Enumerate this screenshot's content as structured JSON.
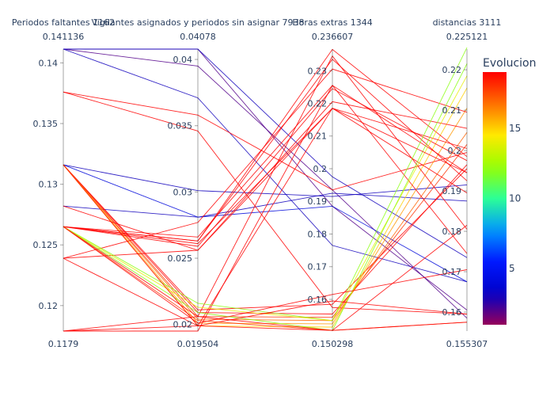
{
  "chart_data": {
    "type": "parallel_coordinates",
    "dimensions": [
      {
        "label": "Periodos faltantes 1162",
        "range": [
          0.1179,
          0.141136
        ],
        "range_labels": [
          "0.1179",
          "0.141136"
        ],
        "ticks": [
          0.12,
          0.125,
          0.13,
          0.135,
          0.14
        ],
        "tick_labels": [
          "0.12",
          "0.125",
          "0.13",
          "0.135",
          "0.14"
        ]
      },
      {
        "label": "Vigilantes asignados y periodos sin asignar 7938",
        "range": [
          0.019504,
          0.04078
        ],
        "range_labels": [
          "0.019504",
          "0.04078"
        ],
        "ticks": [
          0.02,
          0.025,
          0.03,
          0.035,
          0.04
        ],
        "tick_labels": [
          "0.02",
          "0.025",
          "0.03",
          "0.035",
          "0.04"
        ]
      },
      {
        "label": "Horas extras 1344",
        "range": [
          0.150298,
          0.236607
        ],
        "range_labels": [
          "0.150298",
          "0.236607"
        ],
        "ticks": [
          0.16,
          0.17,
          0.18,
          0.19,
          0.2,
          0.21,
          0.22,
          0.23
        ],
        "tick_labels": [
          "0.16",
          "0.17",
          "0.18",
          "0.19",
          "0.2",
          "0.21",
          "0.22",
          "0.23"
        ]
      },
      {
        "label": "distancias 3111",
        "range": [
          0.155307,
          0.225121
        ],
        "range_labels": [
          "0.155307",
          "0.225121"
        ],
        "ticks": [
          0.16,
          0.17,
          0.18,
          0.19,
          0.2,
          0.21,
          0.22
        ],
        "tick_labels": [
          "0.16",
          "0.17",
          "0.18",
          "0.19",
          "0.2",
          "0.21",
          "0.22"
        ]
      }
    ],
    "colorbar": {
      "title": "Evolucion",
      "min": 1,
      "max": 19,
      "ticks": [
        5,
        10,
        15
      ],
      "tick_labels": [
        "5",
        "10",
        "15"
      ],
      "colorscale": "rainbow"
    },
    "lines": [
      {
        "values": [
          0.141136,
          0.04078,
          0.1885,
          0.1605
        ],
        "color_value": 2
      },
      {
        "values": [
          0.141136,
          0.0395,
          0.1935,
          0.1585
        ],
        "color_value": 2
      },
      {
        "values": [
          0.141136,
          0.0371,
          0.1765,
          0.1675
        ],
        "color_value": 3
      },
      {
        "values": [
          0.141136,
          0.04078,
          0.1975,
          0.1735
        ],
        "color_value": 3
      },
      {
        "values": [
          0.1316,
          0.0301,
          0.1915,
          0.1915
        ],
        "color_value": 3
      },
      {
        "values": [
          0.1282,
          0.0281,
          0.1925,
          0.1875
        ],
        "color_value": 3
      },
      {
        "values": [
          0.1316,
          0.0281,
          0.1885,
          0.1675
        ],
        "color_value": 4
      },
      {
        "values": [
          0.1376,
          0.0358,
          0.1935,
          0.1995
        ],
        "color_value": 19
      },
      {
        "values": [
          0.1376,
          0.0346,
          0.1575,
          0.1595
        ],
        "color_value": 19
      },
      {
        "values": [
          0.1316,
          0.0211,
          0.1585,
          0.1955
        ],
        "color_value": 19
      },
      {
        "values": [
          0.1316,
          0.0209,
          0.1555,
          0.1965
        ],
        "color_value": 19
      },
      {
        "values": [
          0.1316,
          0.0206,
          0.1545,
          0.2015
        ],
        "color_value": 18
      },
      {
        "values": [
          0.1316,
          0.0204,
          0.1535,
          0.2045
        ],
        "color_value": 17
      },
      {
        "values": [
          0.1316,
          0.0201,
          0.1525,
          0.2105
        ],
        "color_value": 16
      },
      {
        "values": [
          0.1316,
          0.0199,
          0.1515,
          0.2155
        ],
        "color_value": 15
      },
      {
        "values": [
          0.1265,
          0.0266,
          0.2255,
          0.1945
        ],
        "color_value": 19
      },
      {
        "values": [
          0.1265,
          0.0263,
          0.2365,
          0.1985
        ],
        "color_value": 19
      },
      {
        "values": [
          0.1265,
          0.0261,
          0.2185,
          0.2005
        ],
        "color_value": 19
      },
      {
        "values": [
          0.1265,
          0.0259,
          0.2245,
          0.1975
        ],
        "color_value": 19
      },
      {
        "values": [
          0.1265,
          0.0263,
          0.2335,
          0.1925
        ],
        "color_value": 19
      },
      {
        "values": [
          0.1239,
          0.0277,
          0.2305,
          0.2095
        ],
        "color_value": 19
      },
      {
        "values": [
          0.1239,
          0.0256,
          0.2205,
          0.2055
        ],
        "color_value": 19
      },
      {
        "values": [
          0.1179,
          0.0206,
          0.2345,
          0.1805
        ],
        "color_value": 19
      },
      {
        "values": [
          0.1179,
          0.0199,
          0.2185,
          0.1895
        ],
        "color_value": 19
      },
      {
        "values": [
          0.1179,
          0.019504,
          0.2255,
          0.1745
        ],
        "color_value": 19
      },
      {
        "values": [
          0.1265,
          0.0216,
          0.1535,
          0.2255
        ],
        "color_value": 12
      },
      {
        "values": [
          0.1265,
          0.0213,
          0.1535,
          0.2185
        ],
        "color_value": 14
      },
      {
        "values": [
          0.1265,
          0.0209,
          0.1505,
          0.2215
        ],
        "color_value": 12
      },
      {
        "values": [
          0.1265,
          0.0206,
          0.1505,
          0.1815
        ],
        "color_value": 19
      },
      {
        "values": [
          0.1265,
          0.0201,
          0.1615,
          0.1705
        ],
        "color_value": 19
      },
      {
        "values": [
          0.1239,
          0.0199,
          0.1595,
          0.1595
        ],
        "color_value": 19
      },
      {
        "values": [
          0.1265,
          0.0203,
          0.1505,
          0.1575
        ],
        "color_value": 18
      },
      {
        "values": [
          0.1316,
          0.0199,
          0.1505,
          0.1575
        ],
        "color_value": 19
      },
      {
        "values": [
          0.1282,
          0.0256,
          0.2185,
          0.1945
        ],
        "color_value": 19
      }
    ]
  }
}
